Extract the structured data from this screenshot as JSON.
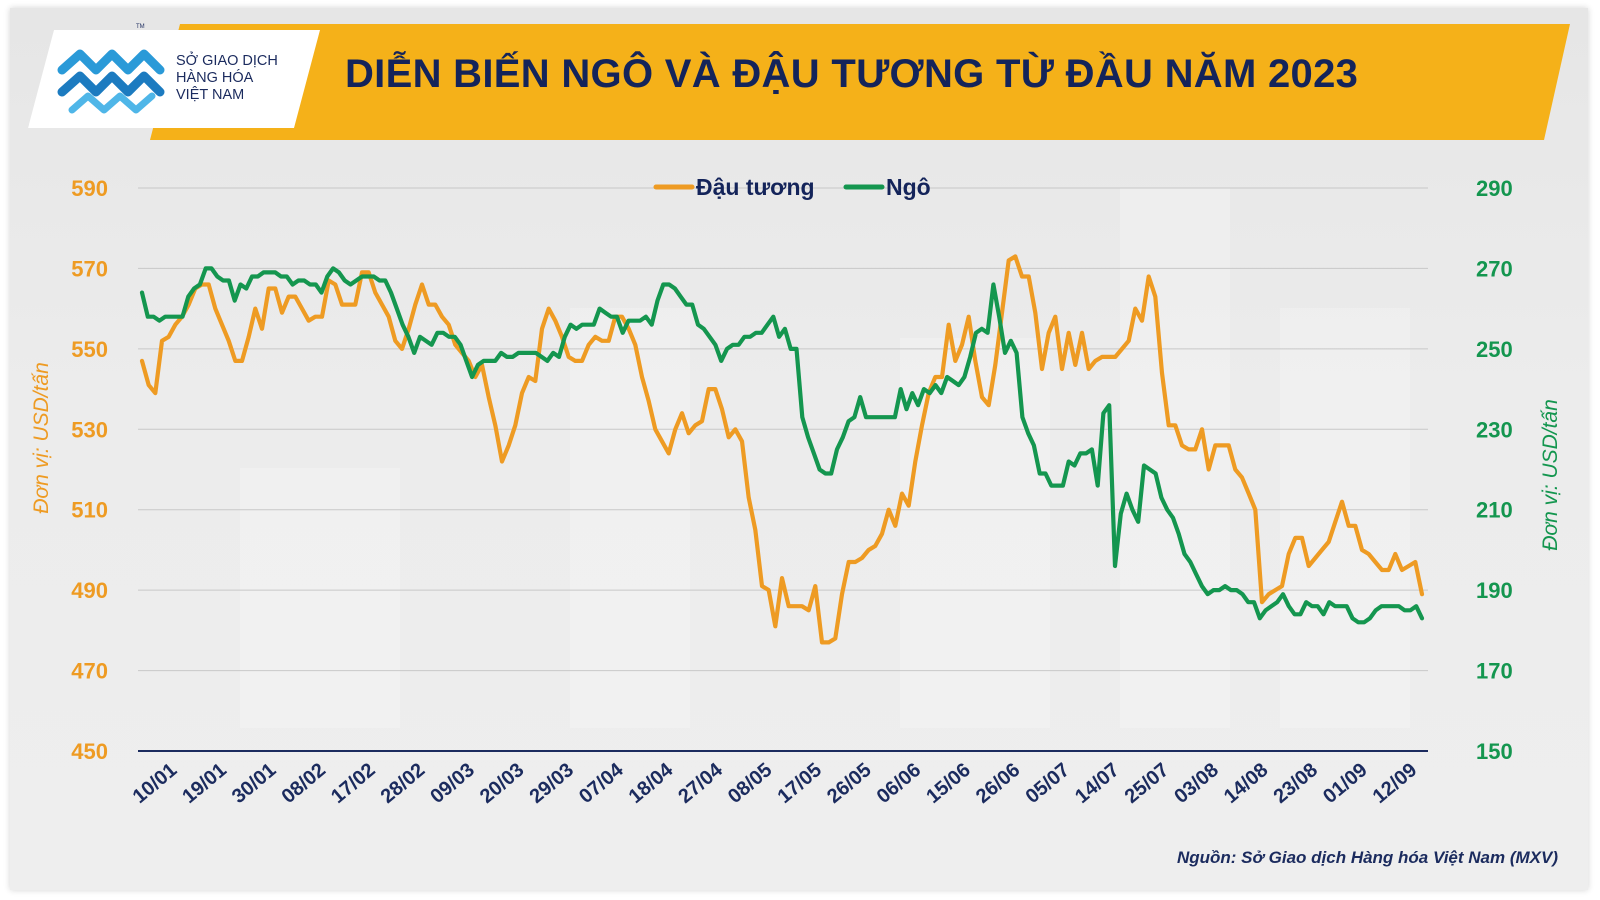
{
  "header": {
    "title": "DIỄN BIẾN NGÔ VÀ ĐẬU TƯƠNG TỪ ĐẦU NĂM 2023",
    "logo_lines": [
      "SỞ GIAO DỊCH",
      "HÀNG HÓA",
      "VIỆT NAM"
    ],
    "logo_tm": "TM",
    "banner_color": "#f5b119",
    "title_color": "#14245a"
  },
  "footer": {
    "source": "Nguồn: Sở Giao dịch Hàng hóa Việt Nam (MXV)"
  },
  "colors": {
    "soybean": "#ee9b23",
    "corn": "#14964f",
    "grid": "#c8c8c8",
    "baseline": "#1b2b5e",
    "tick_x": "#1b2b5e"
  },
  "chart_data": {
    "type": "line",
    "legend_position": "top-center",
    "grid": true,
    "x_tick_labels": [
      "10/01",
      "19/01",
      "30/01",
      "08/02",
      "17/02",
      "28/02",
      "09/03",
      "20/03",
      "29/03",
      "07/04",
      "18/04",
      "27/04",
      "08/05",
      "17/05",
      "26/05",
      "06/06",
      "15/06",
      "26/06",
      "05/07",
      "14/07",
      "25/07",
      "03/08",
      "14/08",
      "23/08",
      "01/09",
      "12/09"
    ],
    "y_left": {
      "label": "Đơn vị: USD/tấn",
      "range": [
        450,
        590
      ],
      "ticks": [
        450,
        470,
        490,
        510,
        530,
        550,
        570,
        590
      ]
    },
    "y_right": {
      "label": "Đơn vị: USD/tấn",
      "range": [
        150,
        290
      ],
      "ticks": [
        150,
        170,
        190,
        210,
        230,
        250,
        270,
        290
      ]
    },
    "series": [
      {
        "name": "Đậu tương",
        "axis": "left",
        "color": "#ee9b23",
        "values": [
          547,
          541,
          539,
          552,
          553,
          556,
          558,
          561,
          565,
          566,
          566,
          560,
          556,
          552,
          547,
          547,
          553,
          560,
          555,
          565,
          565,
          559,
          563,
          563,
          560,
          557,
          558,
          558,
          567,
          566,
          561,
          561,
          561,
          569,
          569,
          564,
          561,
          558,
          552,
          550,
          555,
          561,
          566,
          561,
          561,
          558,
          556,
          551,
          549,
          547,
          543,
          546,
          538,
          531,
          522,
          526,
          531,
          539,
          543,
          542,
          555,
          560,
          557,
          553,
          548,
          547,
          547,
          551,
          553,
          552,
          552,
          558,
          558,
          555,
          551,
          543,
          537,
          530,
          527,
          524,
          530,
          534,
          529,
          531,
          532,
          540,
          540,
          535,
          528,
          530,
          527,
          513,
          505,
          491,
          490,
          481,
          493,
          486,
          486,
          486,
          485,
          491,
          477,
          477,
          478,
          489,
          497,
          497,
          498,
          500,
          501,
          504,
          510,
          506,
          514,
          511,
          522,
          531,
          539,
          543,
          543,
          556,
          547,
          551,
          558,
          547,
          538,
          536,
          546,
          559,
          572,
          573,
          568,
          568,
          559,
          545,
          554,
          558,
          545,
          554,
          546,
          554,
          545,
          547,
          548,
          548,
          548,
          550,
          552,
          560,
          557,
          568,
          563,
          544,
          531,
          531,
          526,
          525,
          525,
          530,
          520,
          526,
          526,
          526,
          520,
          518,
          514,
          510,
          487,
          489,
          490,
          491,
          499,
          503,
          503,
          496,
          498,
          500,
          502,
          507,
          512,
          506,
          506,
          500,
          499,
          497,
          495,
          495,
          499,
          495,
          496,
          497,
          489
        ]
      },
      {
        "name": "Ngô",
        "axis": "right",
        "color": "#14964f",
        "values": [
          264,
          258,
          258,
          257,
          258,
          258,
          258,
          258,
          263,
          265,
          266,
          270,
          270,
          268,
          267,
          267,
          262,
          266,
          265,
          268,
          268,
          269,
          269,
          269,
          268,
          268,
          266,
          267,
          267,
          266,
          266,
          264,
          268,
          270,
          269,
          267,
          266,
          267,
          268,
          268,
          268,
          267,
          267,
          264,
          260,
          256,
          253,
          249,
          253,
          252,
          251,
          254,
          254,
          253,
          253,
          251,
          247,
          243,
          246,
          247,
          247,
          247,
          249,
          248,
          248,
          249,
          249,
          249,
          249,
          248,
          247,
          249,
          248,
          253,
          256,
          255,
          256,
          256,
          256,
          260,
          259,
          258,
          258,
          254,
          257,
          257,
          257,
          258,
          256,
          262,
          266,
          266,
          265,
          263,
          261,
          261,
          256,
          255,
          253,
          251,
          247,
          250,
          251,
          251,
          253,
          253,
          254,
          254,
          256,
          258,
          253,
          255,
          250,
          250,
          233,
          228,
          224,
          220,
          219,
          219,
          225,
          228,
          232,
          233,
          238,
          233,
          233,
          233,
          233,
          233,
          233,
          240,
          235,
          239,
          236,
          240,
          239,
          241,
          239,
          243,
          242,
          241,
          243,
          248,
          254,
          255,
          254,
          266,
          258,
          249,
          252,
          249,
          233,
          229,
          226,
          219,
          219,
          216,
          216,
          216,
          222,
          221,
          224,
          224,
          225,
          216,
          234,
          236,
          196,
          209,
          214,
          210,
          207,
          221,
          220,
          219,
          213,
          210,
          208,
          204,
          199,
          197,
          194,
          191,
          189,
          190,
          190,
          191,
          190,
          190,
          189,
          187,
          187,
          183,
          185,
          186,
          187,
          189,
          186,
          184,
          184,
          187,
          186,
          186,
          184,
          187,
          186,
          186,
          186,
          183,
          182,
          182,
          183,
          185,
          186,
          186,
          186,
          186,
          185,
          185,
          186,
          183
        ]
      }
    ]
  }
}
